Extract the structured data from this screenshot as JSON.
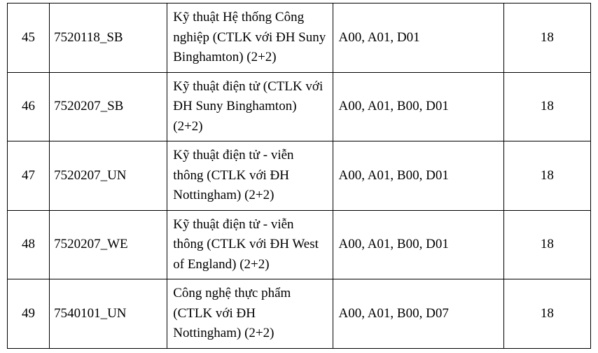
{
  "table": {
    "rows": [
      {
        "num": "45",
        "code": "7520118_SB",
        "name": "Kỹ thuật Hệ thống Công nghiệp (CTLK với ĐH Suny Binghamton) (2+2)",
        "combo": "A00, A01, D01",
        "score": "18"
      },
      {
        "num": "46",
        "code": "7520207_SB",
        "name": "Kỹ thuật điện tử (CTLK với ĐH Suny Binghamton) (2+2)",
        "combo": "A00, A01, B00, D01",
        "score": "18"
      },
      {
        "num": "47",
        "code": "7520207_UN",
        "name": "Kỹ thuật điện tử - viễn thông (CTLK với ĐH Nottingham) (2+2)",
        "combo": "A00, A01, B00, D01",
        "score": "18"
      },
      {
        "num": "48",
        "code": "7520207_WE",
        "name": "Kỹ thuật điện tử - viễn thông (CTLK với ĐH West of England) (2+2)",
        "combo": "A00, A01, B00, D01",
        "score": "18"
      },
      {
        "num": "49",
        "code": "7540101_UN",
        "name": "Công nghệ thực phẩm (CTLK với ĐH Nottingham) (2+2)",
        "combo": "A00, A01, B00, D07",
        "score": "18"
      }
    ],
    "columns": [
      "num",
      "code",
      "name",
      "combo",
      "score"
    ],
    "font_family": "Times New Roman",
    "font_size_pt": 14,
    "border_color": "#000000",
    "background_color": "#ffffff",
    "text_color": "#000000"
  }
}
